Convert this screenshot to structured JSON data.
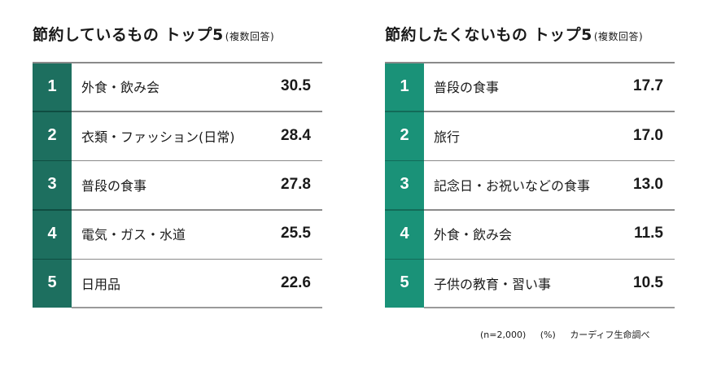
{
  "left": {
    "title": "節約しているもの トップ5",
    "subtitle": "(複数回答)",
    "rows": [
      {
        "rank": "1",
        "label": "外食・飲み会",
        "value": "30.5"
      },
      {
        "rank": "2",
        "label": "衣類・ファッション(日常)",
        "value": "28.4"
      },
      {
        "rank": "3",
        "label": "普段の食事",
        "value": "27.8"
      },
      {
        "rank": "4",
        "label": "電気・ガス・水道",
        "value": "25.5"
      },
      {
        "rank": "5",
        "label": "日用品",
        "value": "22.6"
      }
    ],
    "accent_color": "#1d6f5f"
  },
  "right": {
    "title": "節約したくないもの トップ5",
    "subtitle": "(複数回答)",
    "rows": [
      {
        "rank": "1",
        "label": "普段の食事",
        "value": "17.7"
      },
      {
        "rank": "2",
        "label": "旅行",
        "value": "17.0"
      },
      {
        "rank": "3",
        "label": "記念日・お祝いなどの食事",
        "value": "13.0"
      },
      {
        "rank": "4",
        "label": "外食・飲み会",
        "value": "11.5"
      },
      {
        "rank": "5",
        "label": "子供の教育・習い事",
        "value": "10.5"
      }
    ],
    "accent_color": "#1a9278"
  },
  "footer": {
    "sample": "(n=2,000)",
    "unit": "(%)",
    "source": "カーディフ生命調べ"
  },
  "chart_data": [
    {
      "type": "table",
      "title": "節約しているもの トップ5(複数回答)",
      "categories": [
        "外食・飲み会",
        "衣類・ファッション(日常)",
        "普段の食事",
        "電気・ガス・水道",
        "日用品"
      ],
      "values": [
        30.5,
        28.4,
        27.8,
        25.5,
        22.6
      ],
      "unit": "%",
      "n": 2000
    },
    {
      "type": "table",
      "title": "節約したくないもの トップ5(複数回答)",
      "categories": [
        "普段の食事",
        "旅行",
        "記念日・お祝いなどの食事",
        "外食・飲み会",
        "子供の教育・習い事"
      ],
      "values": [
        17.7,
        17.0,
        13.0,
        11.5,
        10.5
      ],
      "unit": "%",
      "n": 2000
    }
  ]
}
